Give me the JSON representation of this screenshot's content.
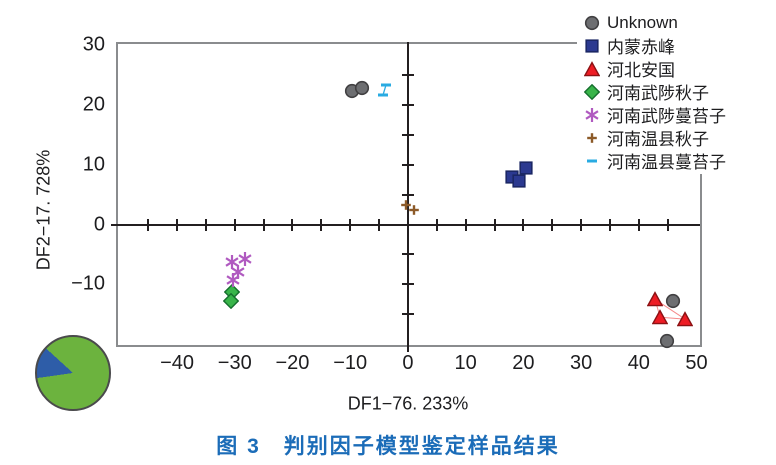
{
  "figure": {
    "caption": "图 3　判别因子模型鉴定样品结果"
  },
  "chart_data": {
    "type": "scatter",
    "title": "",
    "xlabel": "DF1−76. 233%",
    "ylabel": "DF2−17. 728%",
    "xlim": [
      -50.4,
      50.6
    ],
    "ylim": [
      -20.3,
      30.5
    ],
    "x_ticks": [
      "−40",
      "−30",
      "−20",
      "−10",
      "0",
      "10",
      "20",
      "30",
      "40",
      "50"
    ],
    "y_ticks": [
      "30",
      "20",
      "10",
      "0",
      "−10"
    ],
    "grid": false,
    "legend_position": "top-right",
    "axis_style": "boxed with interior crosshair axes at 0,0; minor ticks every 5 units on interior axes",
    "series": [
      {
        "name": "Unknown",
        "marker": "circle",
        "color": "#6d6e71",
        "stroke": "#414042",
        "points": [
          [
            -9.7,
            22.3
          ],
          [
            -8.0,
            22.8
          ],
          [
            45.9,
            -12.7
          ],
          [
            44.9,
            -19.5
          ]
        ]
      },
      {
        "name": "内蒙赤峰",
        "marker": "square",
        "color": "#2b3990",
        "stroke": "#1b2765",
        "points": [
          [
            18.0,
            8.0
          ],
          [
            20.4,
            9.5
          ],
          [
            19.2,
            7.3
          ]
        ]
      },
      {
        "name": "河北安国",
        "marker": "triangle",
        "color": "#ed1c24",
        "stroke": "#8c1113",
        "points": [
          [
            42.8,
            -12.5
          ],
          [
            43.7,
            -15.5
          ],
          [
            48.0,
            -15.8
          ]
        ],
        "connect_lines": [
          [
            0,
            1
          ],
          [
            0,
            2
          ],
          [
            1,
            2
          ]
        ],
        "line_color": "#f58a8a",
        "line_width": 1
      },
      {
        "name": "河南武陟秋子",
        "marker": "diamond",
        "color": "#39b54a",
        "stroke": "#156f2d",
        "points": [
          [
            -30.5,
            -11.3
          ],
          [
            -30.7,
            -12.8
          ]
        ]
      },
      {
        "name": "河南武陟蔓苔子",
        "marker": "asterisk",
        "color": "#b05ac0",
        "stroke": "#b05ac0",
        "points": [
          [
            -30.5,
            -6.3
          ],
          [
            -28.2,
            -5.8
          ],
          [
            -29.5,
            -8.0
          ],
          [
            -30.3,
            -9.2
          ]
        ]
      },
      {
        "name": "河南温县秋子",
        "marker": "plus",
        "color": "#8c5a28",
        "stroke": "#8c5a28",
        "points": [
          [
            -0.3,
            3.2
          ],
          [
            1.0,
            2.4
          ]
        ]
      },
      {
        "name": "河南温县蔓苔子",
        "marker": "dash",
        "color": "#29abe2",
        "stroke": "#29abe2",
        "points": [
          [
            -3.8,
            23.3
          ],
          [
            -4.3,
            21.7
          ]
        ],
        "connect_lines": [
          [
            0,
            1
          ]
        ],
        "line_color": "#29abe2",
        "line_width": 1.3
      }
    ],
    "inset_pie": {
      "type": "pie",
      "rotation_deg": 262,
      "slices": [
        {
          "value": 14,
          "color": "#2e5da8"
        },
        {
          "value": 86,
          "color": "#6cb33e"
        }
      ]
    }
  }
}
